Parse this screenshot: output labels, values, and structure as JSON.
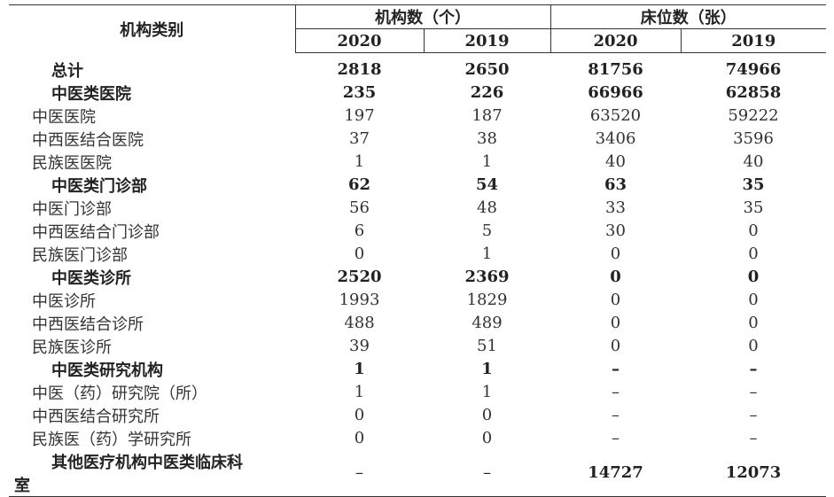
{
  "header": {
    "category": "机构类别",
    "group_institutions": "机构数（个）",
    "group_beds": "床位数（张）",
    "years": [
      "2020",
      "2019",
      "2020",
      "2019"
    ]
  },
  "rows": [
    {
      "label": "总计",
      "v": [
        "2818",
        "2650",
        "81756",
        "74966"
      ],
      "style": "bold"
    },
    {
      "label": "中医类医院",
      "v": [
        "235",
        "226",
        "66966",
        "62858"
      ],
      "style": "bold"
    },
    {
      "label": "中医医院",
      "v": [
        "197",
        "187",
        "63520",
        "59222"
      ],
      "style": "sub"
    },
    {
      "label": "中西医结合医院",
      "v": [
        "37",
        "38",
        "3406",
        "3596"
      ],
      "style": "sub"
    },
    {
      "label": "民族医医院",
      "v": [
        "1",
        "1",
        "40",
        "40"
      ],
      "style": "sub"
    },
    {
      "label": "中医类门诊部",
      "v": [
        "62",
        "54",
        "63",
        "35"
      ],
      "style": "bold"
    },
    {
      "label": "中医门诊部",
      "v": [
        "56",
        "48",
        "33",
        "35"
      ],
      "style": "sub"
    },
    {
      "label": "中西医结合门诊部",
      "v": [
        "6",
        "5",
        "30",
        "0"
      ],
      "style": "sub"
    },
    {
      "label": "民族医门诊部",
      "v": [
        "0",
        "1",
        "0",
        "0"
      ],
      "style": "sub"
    },
    {
      "label": "中医类诊所",
      "v": [
        "2520",
        "2369",
        "0",
        "0"
      ],
      "style": "bold"
    },
    {
      "label": "中医诊所",
      "v": [
        "1993",
        "1829",
        "0",
        "0"
      ],
      "style": "sub"
    },
    {
      "label": "中西医结合诊所",
      "v": [
        "488",
        "489",
        "0",
        "0"
      ],
      "style": "sub"
    },
    {
      "label": "民族医诊所",
      "v": [
        "39",
        "51",
        "0",
        "0"
      ],
      "style": "sub"
    },
    {
      "label": "中医类研究机构",
      "v": [
        "1",
        "1",
        "–",
        "–"
      ],
      "style": "bold"
    },
    {
      "label": "中医（药）研究院（所）",
      "v": [
        "1",
        "1",
        "–",
        "–"
      ],
      "style": "sub"
    },
    {
      "label": "中西医结合研究所",
      "v": [
        "0",
        "0",
        "–",
        "–"
      ],
      "style": "sub"
    },
    {
      "label": "民族医（药）学研究所",
      "v": [
        "0",
        "0",
        "–",
        "–"
      ],
      "style": "sub"
    }
  ],
  "last_row": {
    "label_line1": "其他医疗机构中医类临床科",
    "label_line2": "室",
    "v": [
      "–",
      "–",
      "14727",
      "12073"
    ]
  }
}
